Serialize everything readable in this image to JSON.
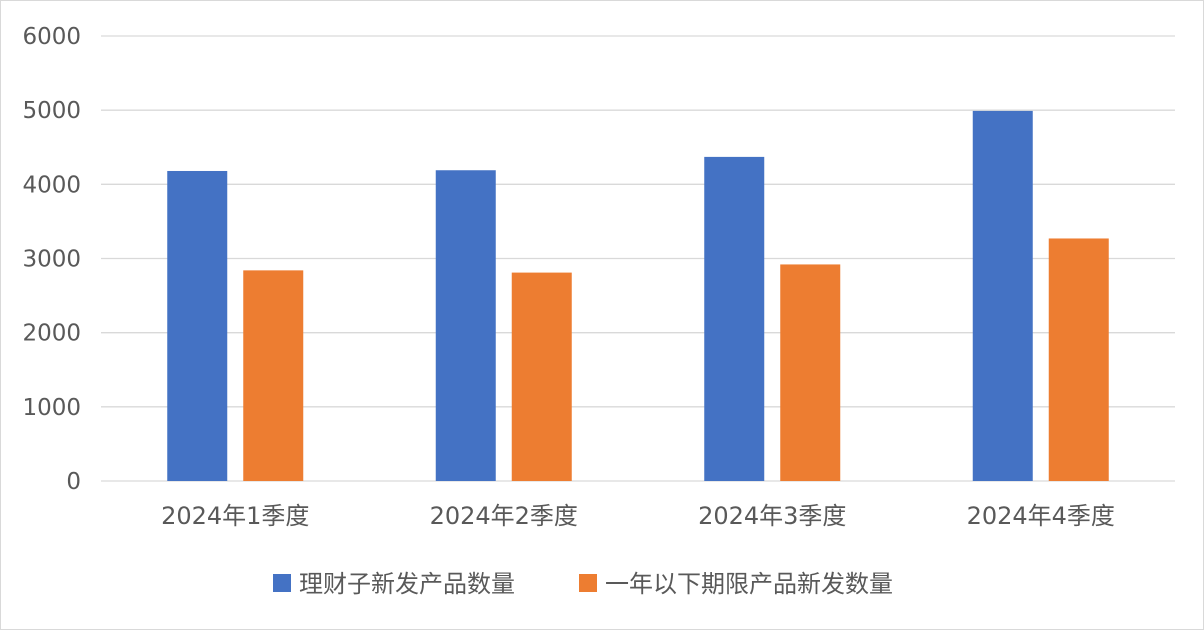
{
  "chart_data": {
    "type": "bar",
    "categories": [
      "2024年1季度",
      "2024年2季度",
      "2024年3季度",
      "2024年4季度"
    ],
    "series": [
      {
        "name": "理财子新发产品数量",
        "values": [
          4180,
          4190,
          4370,
          4990
        ],
        "color": "#4472C4"
      },
      {
        "name": "一年以下期限产品新发数量",
        "values": [
          2840,
          2810,
          2920,
          3270
        ],
        "color": "#ED7D31"
      }
    ],
    "ylim": [
      0,
      6000
    ],
    "yticks": [
      0,
      1000,
      2000,
      3000,
      4000,
      5000,
      6000
    ],
    "grid": true,
    "legend_position": "bottom",
    "gridline_color": "#d9d9d9"
  }
}
